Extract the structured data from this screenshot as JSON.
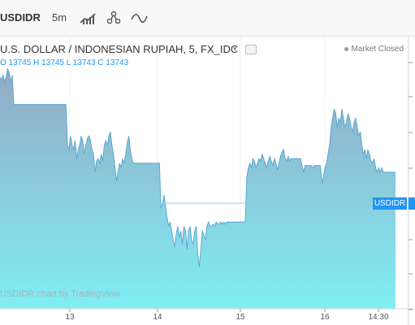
{
  "toolbar": {
    "symbol": "USDIDR",
    "interval": "5m",
    "icons": [
      "bar-style-icon",
      "indicators-icon",
      "compare-icon"
    ]
  },
  "legend": {
    "title": "U.S. DOLLAR / INDONESIAN RUPIAH, 5, FX_IDC",
    "ohlc": "O 13745  H 13745  L 13743  C 13743"
  },
  "market_status": "Market Closed",
  "watermark": "USDIDR chart by TradingView",
  "price_label": "USDIDR",
  "colors": {
    "line": "#5ba8d0",
    "fill_top": "#93a9c4",
    "fill_bottom": "#80eef5",
    "accent": "#2196f3"
  },
  "chart_data": {
    "type": "area",
    "x_tick_labels": [
      "13",
      "14",
      "15",
      "16",
      "14:30"
    ],
    "series": [
      {
        "values": [
          0.92,
          0.91,
          0.93,
          0.9,
          0.92,
          0.96,
          0.94,
          0.9,
          0.93,
          0.8,
          0.8,
          0.8,
          0.8,
          0.8,
          0.8,
          0.8,
          0.8,
          0.8,
          0.8,
          0.8,
          0.8,
          0.8,
          0.8,
          0.8,
          0.8,
          0.8,
          0.8,
          0.8,
          0.8,
          0.8,
          0.8,
          0.8,
          0.8,
          0.8,
          0.8,
          0.8,
          0.8,
          0.8,
          0.8,
          0.8,
          0.8,
          0.8,
          0.8,
          0.8,
          0.62,
          0.6,
          0.66,
          0.62,
          0.6,
          0.64,
          0.56,
          0.6,
          0.62,
          0.66,
          0.64,
          0.58,
          0.62,
          0.65,
          0.66,
          0.64,
          0.6,
          0.58,
          0.5,
          0.55,
          0.56,
          0.54,
          0.58,
          0.55,
          0.62,
          0.64,
          0.62,
          0.66,
          0.68,
          0.62,
          0.58,
          0.52,
          0.46,
          0.5,
          0.54,
          0.52,
          0.56,
          0.54,
          0.58,
          0.63,
          0.66,
          0.6,
          0.56,
          0.54,
          0.54,
          0.54,
          0.54,
          0.54,
          0.54,
          0.54,
          0.54,
          0.54,
          0.54,
          0.54,
          0.54,
          0.54,
          0.54,
          0.54,
          0.54,
          0.54,
          0.54,
          0.34,
          0.36,
          0.4,
          0.35,
          0.3,
          0.26,
          0.28,
          0.24,
          0.2,
          0.17,
          0.23,
          0.26,
          0.21,
          0.24,
          0.18,
          0.26,
          0.24,
          0.16,
          0.24,
          0.26,
          0.2,
          0.18,
          0.24,
          0.26,
          0.14,
          0.08,
          0.16,
          0.24,
          0.22,
          0.2,
          0.26,
          0.28,
          0.26,
          0.26,
          0.27,
          0.26,
          0.28,
          0.27,
          0.27,
          0.28,
          0.27,
          0.28,
          0.27,
          0.28,
          0.28,
          0.28,
          0.28,
          0.28,
          0.28,
          0.28,
          0.28,
          0.28,
          0.28,
          0.28,
          0.28,
          0.28,
          0.48,
          0.52,
          0.54,
          0.52,
          0.56,
          0.55,
          0.52,
          0.54,
          0.56,
          0.55,
          0.58,
          0.56,
          0.54,
          0.52,
          0.55,
          0.57,
          0.55,
          0.53,
          0.56,
          0.54,
          0.51,
          0.54,
          0.57,
          0.59,
          0.6,
          0.56,
          0.55,
          0.57,
          0.55,
          0.56,
          0.56,
          0.56,
          0.56,
          0.56,
          0.56,
          0.56,
          0.53,
          0.5,
          0.53,
          0.53,
          0.53,
          0.53,
          0.53,
          0.52,
          0.53,
          0.53,
          0.53,
          0.53,
          0.53,
          0.45,
          0.48,
          0.52,
          0.54,
          0.58,
          0.62,
          0.7,
          0.74,
          0.78,
          0.76,
          0.7,
          0.74,
          0.72,
          0.78,
          0.74,
          0.7,
          0.72,
          0.76,
          0.74,
          0.7,
          0.68,
          0.72,
          0.74,
          0.7,
          0.66,
          0.68,
          0.62,
          0.58,
          0.6,
          0.56,
          0.6,
          0.58,
          0.55,
          0.54,
          0.56,
          0.52,
          0.5,
          0.52,
          0.5,
          0.52,
          0.5,
          0.5,
          0.5,
          0.5,
          0.5,
          0.5,
          0.5,
          0.5,
          0.5
        ]
      }
    ]
  }
}
